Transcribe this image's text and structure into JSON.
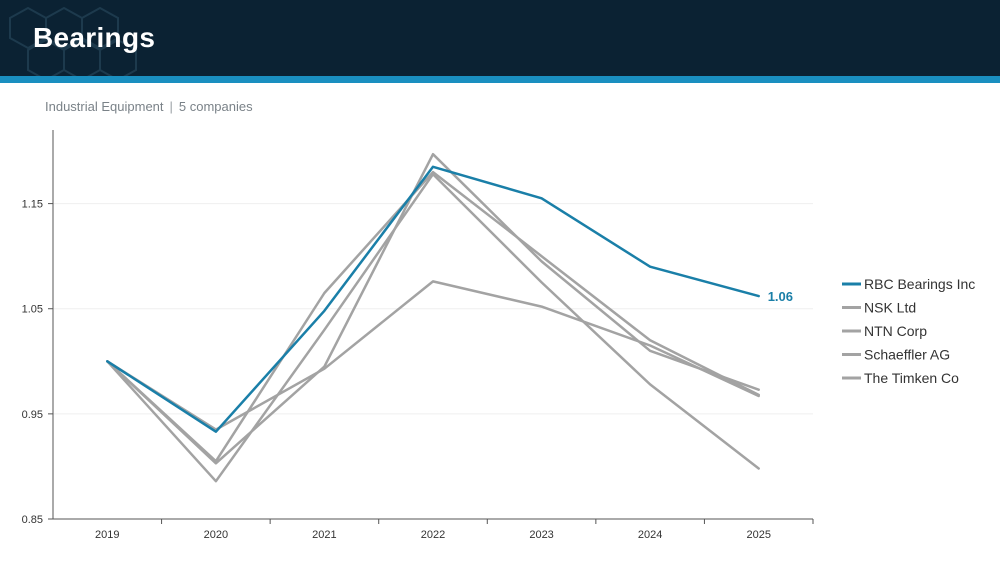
{
  "header": {
    "title": "Bearings"
  },
  "subtitle": {
    "sector": "Industrial Equipment",
    "separator": "|",
    "count": "5 companies"
  },
  "colors": {
    "header_bg": "#0b2233",
    "stripe": "#1a8fc0",
    "highlight": "#1a7fa8",
    "peer": "#a3a3a3"
  },
  "chart_data": {
    "type": "line",
    "title": "",
    "xlabel": "",
    "ylabel": "",
    "x": [
      "2019",
      "2020",
      "2021",
      "2022",
      "2023",
      "2024",
      "2025"
    ],
    "ylim": [
      0.85,
      1.22
    ],
    "yticks": [
      0.85,
      0.95,
      1.05,
      1.15
    ],
    "ytick_labels": [
      "0.85",
      "0.95",
      "1.05",
      "1.15"
    ],
    "grid": true,
    "legend_position": "right",
    "series": [
      {
        "name": "RBC Bearings Inc",
        "highlight": true,
        "values": [
          1.0,
          0.933,
          1.048,
          1.185,
          1.155,
          1.09,
          1.062
        ],
        "end_label": "1.06"
      },
      {
        "name": "NSK Ltd",
        "highlight": false,
        "values": [
          1.0,
          0.905,
          1.065,
          1.18,
          1.1,
          1.02,
          0.968
        ]
      },
      {
        "name": "NTN Corp",
        "highlight": false,
        "values": [
          1.0,
          0.886,
          1.03,
          1.178,
          1.075,
          0.978,
          0.898
        ]
      },
      {
        "name": "Schaeffler AG",
        "highlight": false,
        "values": [
          1.0,
          0.903,
          0.995,
          1.197,
          1.095,
          1.01,
          0.973
        ]
      },
      {
        "name": "The Timken Co",
        "highlight": false,
        "values": [
          1.0,
          0.935,
          0.993,
          1.076,
          1.052,
          1.015,
          0.967
        ]
      }
    ]
  }
}
